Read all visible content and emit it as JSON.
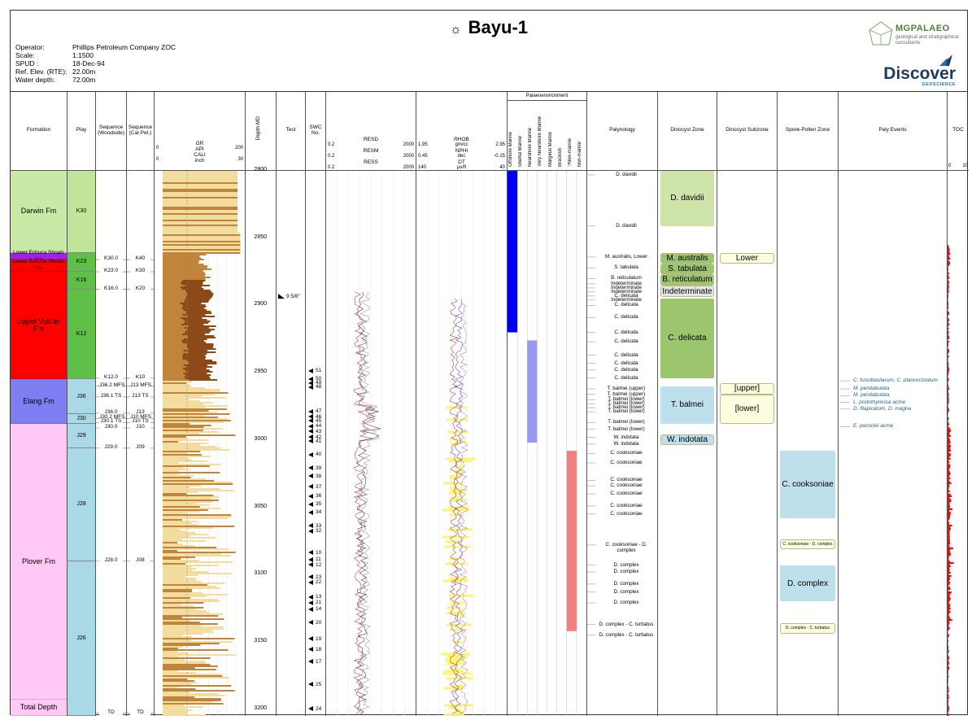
{
  "title": "Bayu-1",
  "title_symbol": "☼",
  "header": [
    {
      "k": "Operator:",
      "v": "Phillips Petroleum Company ZOC"
    },
    {
      "k": "Scale:",
      "v": "1:1500"
    },
    {
      "k": "SPUD :",
      "v": "18-Dec-94"
    },
    {
      "k": "Ref. Elev. (RTE):",
      "v": "22.00m"
    },
    {
      "k": "Water depth:",
      "v": "72.00m"
    }
  ],
  "logos": {
    "mg_name": "MGPALAEO",
    "mg_sub": "geological and stratigraphical consultants",
    "disc_name": "Discover",
    "disc_sub": "GEOSCIENCE"
  },
  "colors": {
    "darwin": "#c7eaa7",
    "lower_echuca": "#a020f0",
    "red": "#ff0000",
    "play_green": "#5fbf47",
    "play_lightgreen": "#bfe49a",
    "elang": "#7e7ef2",
    "plover": "#ffc8f5",
    "play_blue": "#a9d8e6",
    "gr_fill_light": "#f2dca0",
    "gr_fill_dark": "#8b4a17",
    "zone_green": "#9bc66e",
    "zone_lightgreen": "#cfe4a9",
    "zone_blue": "#bde0ec",
    "offshore": "#0000ee",
    "shelf": "#9999f0",
    "nonmarine": "#f08080",
    "toc": "#ff0000"
  },
  "columns": {
    "formation": "Formation",
    "play": "Play",
    "seq_woodside": "Sequence (Woodside)",
    "seq_carpet": "Sequence (Car.Pet.)",
    "depth": "Depth MD",
    "test": "Test",
    "swc": "SWC No.",
    "palynology": "Palynology",
    "dinocyst_zone": "Dinocyst Zone",
    "dinocyst_subzone": "Dinocyst Subzone",
    "spore_pollen": "Spore-Pollen Zone",
    "paly_events": "Paly Events",
    "toc": "TOC",
    "palaeoenv": "Palaeoenvironment"
  },
  "gr_header": [
    {
      "name": "GR",
      "min": "0",
      "max": "200"
    },
    {
      "name": "API",
      "min": "",
      "max": ""
    },
    {
      "name": "CALI",
      "min": "0",
      "max": "30"
    },
    {
      "name": "inch",
      "min": "",
      "max": ""
    }
  ],
  "res_header": [
    {
      "name": "RESD",
      "min": "0.2",
      "max": "2000"
    },
    {
      "name": "RESM",
      "min": "0.2",
      "max": "2000"
    },
    {
      "name": "RESS",
      "min": "0.2",
      "max": "2000"
    }
  ],
  "den_header": [
    {
      "name": "RHOB",
      "unit": "gm/cc",
      "min": "1.95",
      "max": "2.95"
    },
    {
      "name": "NPHI",
      "unit": "dec",
      "min": "0.45",
      "max": "-0.15"
    },
    {
      "name": "DT",
      "unit": "µs/ft",
      "min": "140",
      "max": "40"
    }
  ],
  "palaeoenv_cols": [
    "Offshore Marine",
    "Shelfal Marine",
    "Nearshore Marine",
    "Very Nearshore Marine",
    "Marginal Marine",
    "Brackish",
    "?Non-marine",
    "Non-marine"
  ],
  "toc_scale": [
    "0",
    "10"
  ],
  "depth_range": [
    2800,
    3205
  ],
  "depth_ticks": [
    "2800",
    "2850",
    "2900",
    "2950",
    "3000",
    "3050",
    "3100",
    "3150",
    "3200"
  ],
  "formations": [
    {
      "name": "Darwin Fm",
      "top": 2800,
      "base": 2861,
      "color": "#c7eaa7"
    },
    {
      "name": "Lower Echuca Shoals Fm",
      "top": 2861,
      "base": 2866,
      "color": "#a020f0",
      "small": true
    },
    {
      "name": "Lower Echuca Shoals Fm",
      "top": 2866,
      "base": 2875,
      "color": "#ff0000",
      "small": true
    },
    {
      "name": "Upper Vulcan Fm",
      "top": 2875,
      "base": 2955,
      "color": "#ff0000"
    },
    {
      "name": "Elang Fm",
      "top": 2955,
      "base": 2988,
      "color": "#7e7ef2"
    },
    {
      "name": "Plover Fm",
      "top": 2988,
      "base": 3193,
      "color": "#ffc8f5"
    },
    {
      "name": "Total Depth",
      "top": 3193,
      "base": 3205,
      "color": "#ffc8f5"
    }
  ],
  "plays": [
    {
      "name": "K30",
      "top": 2800,
      "base": 2861,
      "color": "#bfe49a"
    },
    {
      "name": "K23",
      "top": 2861,
      "base": 2875,
      "color": "#5fbf47"
    },
    {
      "name": "K16",
      "top": 2875,
      "base": 2888,
      "color": "#5fbf47"
    },
    {
      "name": "K12",
      "top": 2888,
      "base": 2955,
      "color": "#5fbf47"
    },
    {
      "name": "J36",
      "top": 2955,
      "base": 2981,
      "color": "#a9d8e6"
    },
    {
      "name": "J30",
      "top": 2981,
      "base": 2988,
      "color": "#a9d8e6"
    },
    {
      "name": "J29",
      "top": 2988,
      "base": 3006,
      "color": "#a9d8e6"
    },
    {
      "name": "J28",
      "top": 3006,
      "base": 3090,
      "color": "#a9d8e6"
    },
    {
      "name": "J26",
      "top": 3090,
      "base": 3205,
      "color": "#a9d8e6"
    }
  ],
  "seq_woodside": [
    {
      "label": "K30.0",
      "depth": 2866
    },
    {
      "label": "K23.0",
      "depth": 2875
    },
    {
      "label": "K16.0",
      "depth": 2888
    },
    {
      "label": "K12.0",
      "depth": 2954
    },
    {
      "label": "J36.2 MFS",
      "depth": 2960
    },
    {
      "label": "J36.1 TS",
      "depth": 2968
    },
    {
      "label": "J36.0",
      "depth": 2980
    },
    {
      "label": "J30.2 MFS",
      "depth": 2984
    },
    {
      "label": "J30.1 TS",
      "depth": 2987
    },
    {
      "label": "J30.0",
      "depth": 2991
    },
    {
      "label": "J29.0",
      "depth": 3006
    },
    {
      "label": "J28.0",
      "depth": 3090
    },
    {
      "label": "TD",
      "depth": 3203
    }
  ],
  "seq_carpet": [
    {
      "label": "K40",
      "depth": 2866
    },
    {
      "label": "K30",
      "depth": 2875
    },
    {
      "label": "K20",
      "depth": 2888
    },
    {
      "label": "K10",
      "depth": 2954
    },
    {
      "label": "J13 MFS",
      "depth": 2960
    },
    {
      "label": "J13 TS",
      "depth": 2968
    },
    {
      "label": "J13",
      "depth": 2980
    },
    {
      "label": "J10 MFS",
      "depth": 2984
    },
    {
      "label": "J10 TS",
      "depth": 2987
    },
    {
      "label": "J10",
      "depth": 2991
    },
    {
      "label": "J09",
      "depth": 3006
    },
    {
      "label": "J08",
      "depth": 3090
    },
    {
      "label": "TD",
      "depth": 3203
    }
  ],
  "test": {
    "label": "9 5/8\"",
    "depth": 2895
  },
  "swc": [
    {
      "n": "51",
      "d": 2949
    },
    {
      "n": "50",
      "d": 2955
    },
    {
      "n": "49",
      "d": 2958
    },
    {
      "n": "48",
      "d": 2961
    },
    {
      "n": "47",
      "d": 2979
    },
    {
      "n": "46",
      "d": 2983
    },
    {
      "n": "45",
      "d": 2986
    },
    {
      "n": "44",
      "d": 2990
    },
    {
      "n": "43",
      "d": 2994
    },
    {
      "n": "42",
      "d": 2998
    },
    {
      "n": "41",
      "d": 3001
    },
    {
      "n": "40",
      "d": 3011
    },
    {
      "n": "39",
      "d": 3021
    },
    {
      "n": "38",
      "d": 3027
    },
    {
      "n": "37",
      "d": 3035
    },
    {
      "n": "36",
      "d": 3042
    },
    {
      "n": "35",
      "d": 3048
    },
    {
      "n": "34",
      "d": 3054
    },
    {
      "n": "33",
      "d": 3064
    },
    {
      "n": "32",
      "d": 3068
    },
    {
      "n": "10",
      "d": 3084
    },
    {
      "n": "11",
      "d": 3089
    },
    {
      "n": "12",
      "d": 3093
    },
    {
      "n": "23",
      "d": 3102
    },
    {
      "n": "22",
      "d": 3106
    },
    {
      "n": "13",
      "d": 3117
    },
    {
      "n": "21",
      "d": 3121
    },
    {
      "n": "14",
      "d": 3126
    },
    {
      "n": "20",
      "d": 3136
    },
    {
      "n": "19",
      "d": 3148
    },
    {
      "n": "18",
      "d": 3156
    },
    {
      "n": "17",
      "d": 3165
    },
    {
      "n": "25",
      "d": 3182
    },
    {
      "n": "24",
      "d": 3200
    }
  ],
  "palynology": [
    {
      "t": "D. davidii",
      "d": 2803
    },
    {
      "t": "D. davidii",
      "d": 2841
    },
    {
      "t": "M. australis, Lower",
      "d": 2864
    },
    {
      "t": "S. tabulata",
      "d": 2872
    },
    {
      "t": "B. reticulatum",
      "d": 2880
    },
    {
      "t": "Indeterminate",
      "d": 2884
    },
    {
      "t": "Indeterminate",
      "d": 2887
    },
    {
      "t": "Indeterminate",
      "d": 2890
    },
    {
      "t": "C. delicata",
      "d": 2893
    },
    {
      "t": "Indeterminate",
      "d": 2896
    },
    {
      "t": "C. delicata",
      "d": 2900
    },
    {
      "t": "C. delicata",
      "d": 2909
    },
    {
      "t": "C. delicata",
      "d": 2920
    },
    {
      "t": "C. delicata",
      "d": 2927
    },
    {
      "t": "C. delicata",
      "d": 2937
    },
    {
      "t": "C. delicata",
      "d": 2943
    },
    {
      "t": "C. delicata",
      "d": 2948
    },
    {
      "t": "C. delicata",
      "d": 2954
    },
    {
      "t": "T. balmei (upper)",
      "d": 2962
    },
    {
      "t": "T. balmei (upper)",
      "d": 2966
    },
    {
      "t": "T. balmei (lower)",
      "d": 2970
    },
    {
      "t": "T. balmei (lower)",
      "d": 2973
    },
    {
      "t": "T. balmei (lower)",
      "d": 2976
    },
    {
      "t": "T. balmei (lower)",
      "d": 2979
    },
    {
      "t": "T. balmei (lower)",
      "d": 2987
    },
    {
      "t": "T. balmei (lower)",
      "d": 2992
    },
    {
      "t": "W. indotata",
      "d": 2998
    },
    {
      "t": "W. indotata",
      "d": 3003
    },
    {
      "t": "C. cooksoniae",
      "d": 3010
    },
    {
      "t": "C. cooksoniae",
      "d": 3017
    },
    {
      "t": "C. cooksoniae",
      "d": 3030
    },
    {
      "t": "C. cooksoniae",
      "d": 3034
    },
    {
      "t": "C. cooksoniae",
      "d": 3040
    },
    {
      "t": "C. cooksoniae",
      "d": 3049
    },
    {
      "t": "C. cooksoniae",
      "d": 3055
    },
    {
      "t": "C. cooksoniae - D. complex",
      "d": 3078
    },
    {
      "t": "D. complex",
      "d": 3093
    },
    {
      "t": "D. complex",
      "d": 3098
    },
    {
      "t": "D. complex",
      "d": 3107
    },
    {
      "t": "D. complex",
      "d": 3113
    },
    {
      "t": "D. complex",
      "d": 3121
    },
    {
      "t": "D. complex - C. turbatus",
      "d": 3137
    },
    {
      "t": "D. complex - C. turbatus",
      "d": 3145
    }
  ],
  "dinocyst_zones": [
    {
      "t": "D. davidii",
      "top": 2800,
      "base": 2841,
      "kind": "box",
      "color": "#cfe4a9"
    },
    {
      "t": "M. australis",
      "top": 2861,
      "base": 2869,
      "kind": "pill",
      "color": "#9bc66e"
    },
    {
      "t": "S. tabulata",
      "top": 2869,
      "base": 2877,
      "kind": "pill",
      "color": "#9bc66e"
    },
    {
      "t": "B. reticulatum",
      "top": 2877,
      "base": 2885,
      "kind": "pill",
      "color": "#9bc66e"
    },
    {
      "t": "Indeterminate",
      "top": 2885,
      "base": 2894,
      "kind": "pill",
      "color": "#e5e5e5"
    },
    {
      "t": "C. delicata",
      "top": 2895,
      "base": 2954,
      "kind": "box",
      "color": "#9bc66e"
    },
    {
      "t": "T. balmei",
      "top": 2960,
      "base": 2988,
      "kind": "box",
      "color": "#bde0ec"
    },
    {
      "t": "W. indotata",
      "top": 2996,
      "base": 3004,
      "kind": "pill",
      "color": "#bde0ec"
    }
  ],
  "dinocyst_subzones": [
    {
      "t": "Lower",
      "top": 2861,
      "base": 2869
    },
    {
      "t": "[upper]",
      "top": 2958,
      "base": 2966
    },
    {
      "t": "[lower]",
      "top": 2966,
      "base": 2988
    }
  ],
  "spore_zones": [
    {
      "t": "C. cooksoniae",
      "top": 3008,
      "base": 3058,
      "kind": "box",
      "color": "#bde0ec"
    },
    {
      "t": "C. cooksoniae - D. complex",
      "top": 3074,
      "base": 3081,
      "kind": "pill",
      "color": "#fdfde0",
      "small": true
    },
    {
      "t": "D. complex",
      "top": 3093,
      "base": 3120,
      "kind": "box",
      "color": "#bde0ec"
    },
    {
      "t": "D. complex - C. turbatus",
      "top": 3136,
      "base": 3144,
      "kind": "pill",
      "color": "#fdfde0",
      "small": true
    }
  ],
  "paly_events": [
    {
      "t": "C. fuscibasilarum, C. planocristatum",
      "d": 2956
    },
    {
      "t": "M. penitabulata",
      "d": 2962
    },
    {
      "t": "M. penitabulata",
      "d": 2967
    },
    {
      "t": "L. protothymosa acme",
      "d": 2972
    },
    {
      "t": "D. filapicatum, D. magna",
      "d": 2977
    },
    {
      "t": "E. pocockii acme",
      "d": 2990
    }
  ],
  "palaeoenv_bars": [
    {
      "col": 0,
      "top": 2800,
      "base": 2920,
      "color": "#0000ee"
    },
    {
      "col": 2,
      "top": 2926,
      "base": 3002,
      "color": "#9999f0"
    },
    {
      "col": 6,
      "top": 3008,
      "base": 3142,
      "color": "#f08080"
    }
  ]
}
